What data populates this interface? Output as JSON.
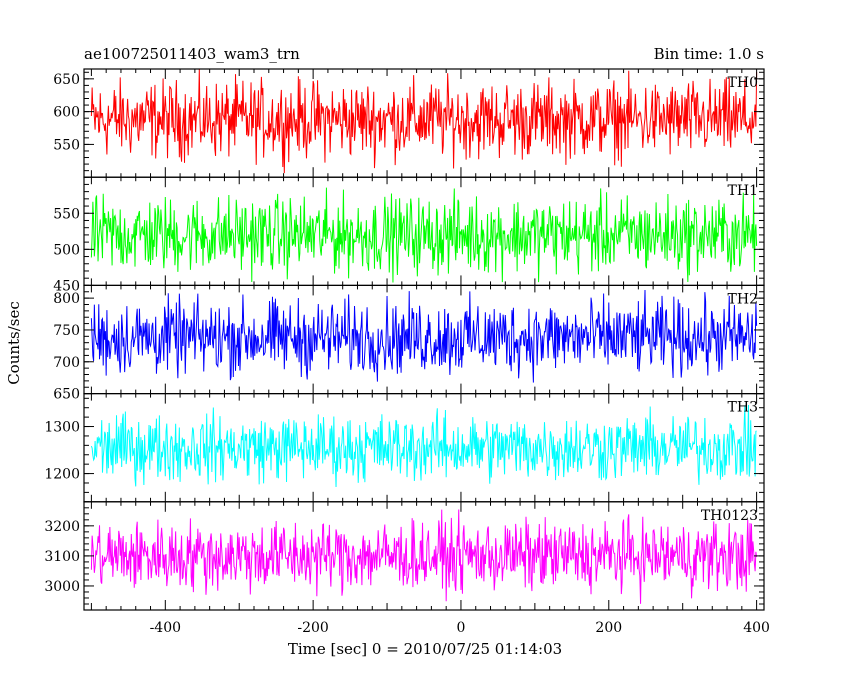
{
  "header": {
    "title": "ae100725011403_wam3_trn",
    "bin_time": "Bin time: 1.0 s"
  },
  "chart_data": {
    "type": "line",
    "title": "ae100725011403_wam3_trn",
    "subtitle": "Bin time: 1.0 s",
    "xlabel": "Time [sec] 0 = 2010/07/25 01:14:03",
    "ylabel": "Counts/sec",
    "xlim": [
      -510,
      410
    ],
    "x_ticks": [
      -400,
      -200,
      0,
      200,
      400
    ],
    "x_range_data": [
      -500,
      400
    ],
    "bin_time_s": 1.0,
    "panels": [
      {
        "name": "TH0",
        "color": "#ff0000",
        "ylim": [
          500,
          665
        ],
        "y_ticks": [
          550,
          600,
          650
        ],
        "mean": 588,
        "noise_amplitude": 50,
        "approx_range": [
          505,
          665
        ]
      },
      {
        "name": "TH1",
        "color": "#00ff00",
        "ylim": [
          450,
          600
        ],
        "y_ticks": [
          450,
          500,
          550
        ],
        "mean": 520,
        "noise_amplitude": 45,
        "approx_range": [
          450,
          595
        ]
      },
      {
        "name": "TH2",
        "color": "#0000ff",
        "ylim": [
          650,
          820
        ],
        "y_ticks": [
          650,
          700,
          750,
          800
        ],
        "mean": 738,
        "noise_amplitude": 50,
        "approx_range": [
          650,
          820
        ]
      },
      {
        "name": "TH3",
        "color": "#00ffff",
        "ylim": [
          1140,
          1370
        ],
        "y_ticks": [
          1200,
          1300
        ],
        "mean": 1255,
        "noise_amplitude": 60,
        "approx_range": [
          1160,
          1355
        ]
      },
      {
        "name": "TH0123",
        "color": "#ff00ff",
        "ylim": [
          2920,
          3280
        ],
        "y_ticks": [
          3000,
          3100,
          3200
        ],
        "mean": 3100,
        "noise_amplitude": 100,
        "approx_range": [
          2920,
          3280
        ]
      }
    ]
  }
}
